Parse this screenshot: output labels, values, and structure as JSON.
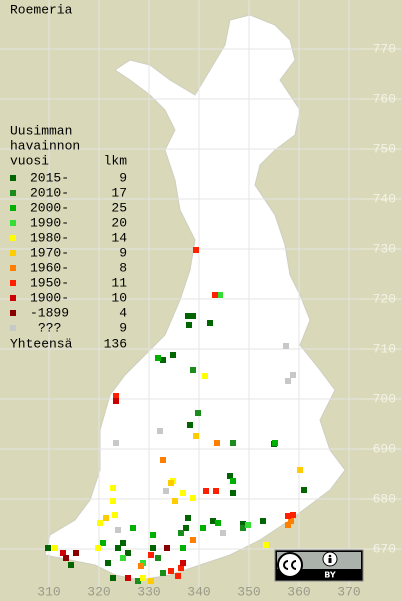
{
  "map": {
    "title": "Roemeria",
    "legend": {
      "title_lines": [
        "Uusimman",
        "havainnon",
        "vuosi"
      ],
      "count_header": "lkm",
      "items": [
        {
          "label": "2015-",
          "count": 9,
          "color": "#006400"
        },
        {
          "label": "2010-",
          "count": 17,
          "color": "#1a8c1a"
        },
        {
          "label": "2000-",
          "count": 25,
          "color": "#00b000"
        },
        {
          "label": "1990-",
          "count": 20,
          "color": "#33dd33"
        },
        {
          "label": "1980-",
          "count": 14,
          "color": "#ffff00"
        },
        {
          "label": "1970-",
          "count": 9,
          "color": "#ffcc00"
        },
        {
          "label": "1960-",
          "count": 8,
          "color": "#ff8000"
        },
        {
          "label": "1950-",
          "count": 11,
          "color": "#ff2000"
        },
        {
          "label": "1900-",
          "count": 10,
          "color": "#cc0000"
        },
        {
          "label": "-1899",
          "count": 4,
          "color": "#880000"
        },
        {
          "label": "???",
          "count": 9,
          "color": "#c8c8c8"
        }
      ],
      "total_label": "Yhteensä",
      "total": 136
    },
    "xticks": [
      310,
      320,
      330,
      340,
      350,
      360,
      370
    ],
    "yticks": [
      670,
      680,
      690,
      700,
      710,
      720,
      730,
      740,
      750,
      760,
      770
    ],
    "badge_label": "BY"
  }
}
